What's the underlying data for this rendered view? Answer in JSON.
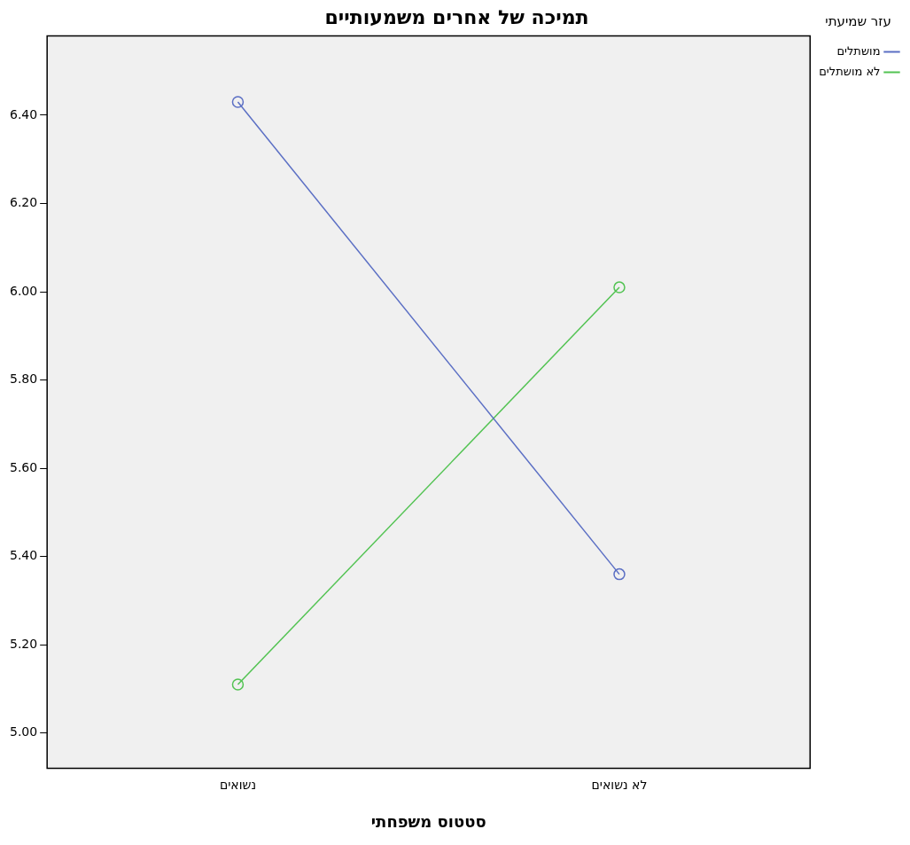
{
  "chart_data": {
    "type": "line",
    "title": "תמיכה של אחרים משמעותיים",
    "xlabel": "סטטוס משפחתי",
    "legend_title": "עזר שמיעתי",
    "categories": [
      "נשואים",
      "לא נשואים"
    ],
    "series": [
      {
        "name": "מושתלים",
        "color": "#5b6fc4",
        "values": [
          6.43,
          5.36
        ]
      },
      {
        "name": "לא מושתלים",
        "color": "#52c352",
        "values": [
          5.11,
          6.01
        ]
      }
    ],
    "ylim": [
      4.92,
      6.58
    ],
    "yticks": [
      {
        "value": 5.0,
        "label": "5.00"
      },
      {
        "value": 5.2,
        "label": "5.20"
      },
      {
        "value": 5.4,
        "label": "5.40"
      },
      {
        "value": 5.6,
        "label": "5.60"
      },
      {
        "value": 5.8,
        "label": "5.80"
      },
      {
        "value": 6.0,
        "label": "6.00"
      },
      {
        "value": 6.2,
        "label": "6.20"
      },
      {
        "value": 6.4,
        "label": "6.40"
      }
    ],
    "grid": false,
    "legend": "top right",
    "marker": "circle",
    "line_style": "solid"
  }
}
